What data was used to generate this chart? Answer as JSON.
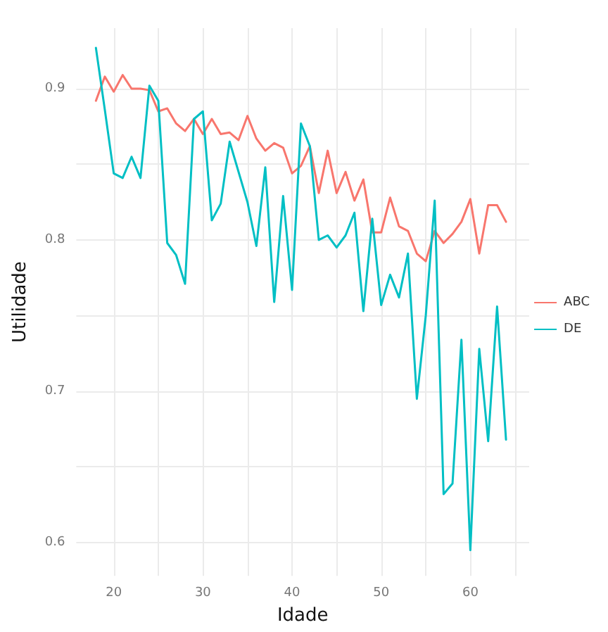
{
  "chart_data": {
    "type": "line",
    "xlabel": "Idade",
    "ylabel": "Utilidade",
    "x": [
      18,
      19,
      20,
      21,
      22,
      23,
      24,
      25,
      26,
      27,
      28,
      29,
      30,
      31,
      32,
      33,
      34,
      35,
      36,
      37,
      38,
      39,
      40,
      41,
      42,
      43,
      44,
      45,
      46,
      47,
      48,
      49,
      50,
      51,
      52,
      53,
      54,
      55,
      56,
      57,
      58,
      59,
      60,
      61,
      62,
      63,
      64
    ],
    "series": [
      {
        "name": "ABC",
        "color": "#f8766d",
        "values": [
          0.892,
          0.908,
          0.898,
          0.909,
          0.9,
          0.9,
          0.899,
          0.885,
          0.887,
          0.877,
          0.872,
          0.88,
          0.87,
          0.88,
          0.87,
          0.871,
          0.866,
          0.882,
          0.867,
          0.859,
          0.864,
          0.861,
          0.844,
          0.849,
          0.862,
          0.831,
          0.859,
          0.831,
          0.845,
          0.826,
          0.84,
          0.805,
          0.805,
          0.828,
          0.809,
          0.806,
          0.791,
          0.786,
          0.806,
          0.798,
          0.804,
          0.812,
          0.827,
          0.791,
          0.823,
          0.823,
          0.812
        ]
      },
      {
        "name": "DE",
        "color": "#00bfc4",
        "values": [
          0.927,
          0.886,
          0.844,
          0.841,
          0.855,
          0.841,
          0.902,
          0.892,
          0.798,
          0.79,
          0.771,
          0.88,
          0.885,
          0.813,
          0.824,
          0.865,
          0.845,
          0.825,
          0.796,
          0.848,
          0.759,
          0.829,
          0.767,
          0.877,
          0.862,
          0.8,
          0.803,
          0.795,
          0.803,
          0.818,
          0.753,
          0.814,
          0.757,
          0.777,
          0.762,
          0.791,
          0.695,
          0.75,
          0.826,
          0.632,
          0.639,
          0.734,
          0.595,
          0.728,
          0.667,
          0.756,
          0.668
        ]
      }
    ],
    "xlim": [
      15.8,
      66.6
    ],
    "xticks": [
      20,
      {
        "value": 25,
        "label": null
      },
      30,
      {
        "value": 35,
        "label": null
      },
      40,
      {
        "value": 45,
        "label": null
      },
      50,
      {
        "value": 55,
        "label": null
      },
      60,
      {
        "value": 65,
        "label": null
      }
    ],
    "ylim": [
      0.578,
      0.94
    ],
    "yticks": [
      {
        "value": 0.6,
        "label": "0.6"
      },
      {
        "value": 0.65,
        "label": null
      },
      {
        "value": 0.7,
        "label": "0.7"
      },
      {
        "value": 0.75,
        "label": null
      },
      {
        "value": 0.8,
        "label": "0.8"
      },
      {
        "value": 0.85,
        "label": null
      },
      {
        "value": 0.9,
        "label": "0.9"
      }
    ],
    "grid": true,
    "legend": "right",
    "marker": "none",
    "line_style": "solid"
  }
}
